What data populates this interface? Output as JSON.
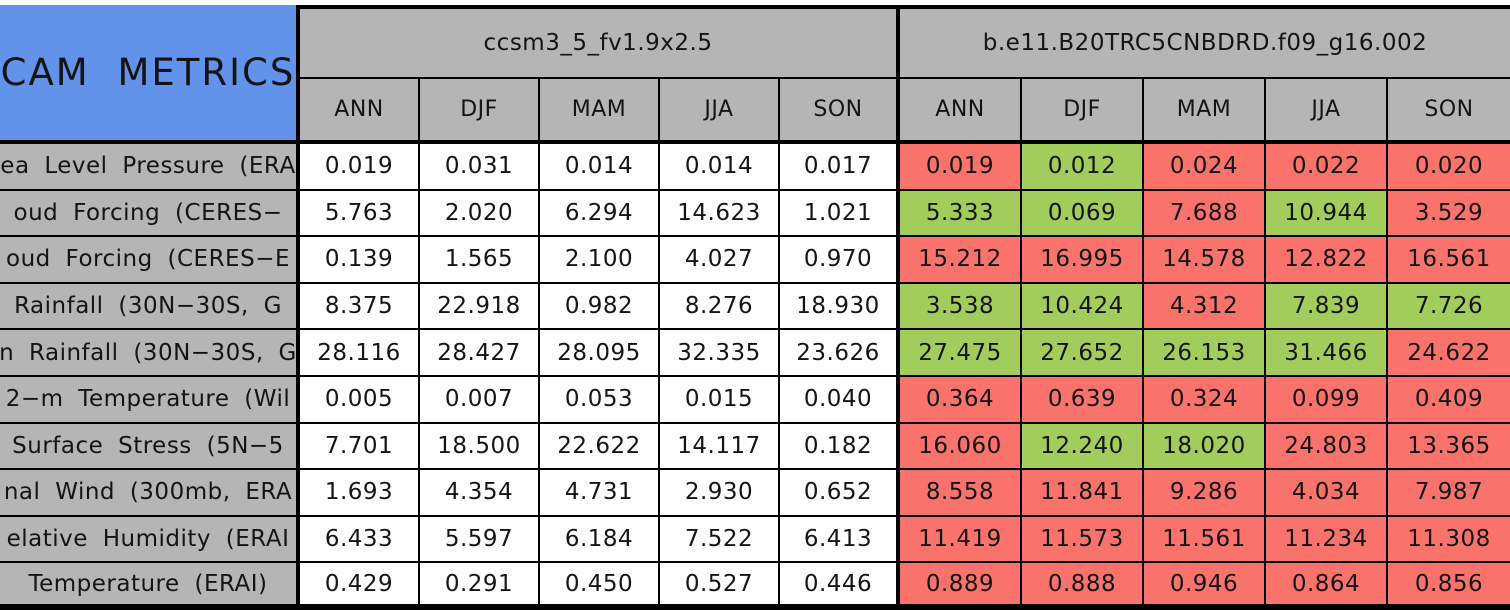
{
  "chart_data": {
    "type": "table",
    "title": "CAM METRICS",
    "models": [
      {
        "name": "ccsm3_5_fv1.9x2.5",
        "seasons": [
          "ANN",
          "DJF",
          "MAM",
          "JJA",
          "SON"
        ]
      },
      {
        "name": "b.e11.B20TRC5CNBDRD.f09_g16.002",
        "seasons": [
          "ANN",
          "DJF",
          "MAM",
          "JJA",
          "SON"
        ]
      }
    ],
    "rows": [
      {
        "label": "ea Level Pressure (ERA",
        "model1_values": [
          "0.019",
          "0.031",
          "0.014",
          "0.014",
          "0.017"
        ],
        "model2_values": [
          "0.019",
          "0.012",
          "0.024",
          "0.022",
          "0.020"
        ],
        "model2_status": [
          "red",
          "green",
          "red",
          "red",
          "red"
        ]
      },
      {
        "label": "oud Forcing (CERES−",
        "model1_values": [
          "5.763",
          "2.020",
          "6.294",
          "14.623",
          "1.021"
        ],
        "model2_values": [
          "5.333",
          "0.069",
          "7.688",
          "10.944",
          "3.529"
        ],
        "model2_status": [
          "green",
          "green",
          "red",
          "green",
          "red"
        ]
      },
      {
        "label": "oud Forcing (CERES−E",
        "model1_values": [
          "0.139",
          "1.565",
          "2.100",
          "4.027",
          "0.970"
        ],
        "model2_values": [
          "15.212",
          "16.995",
          "14.578",
          "12.822",
          "16.561"
        ],
        "model2_status": [
          "red",
          "red",
          "red",
          "red",
          "red"
        ]
      },
      {
        "label": "Rainfall (30N−30S, G",
        "model1_values": [
          "8.375",
          "22.918",
          "0.982",
          "8.276",
          "18.930"
        ],
        "model2_values": [
          "3.538",
          "10.424",
          "4.312",
          "7.839",
          "7.726"
        ],
        "model2_status": [
          "green",
          "green",
          "red",
          "green",
          "green"
        ]
      },
      {
        "label": "n Rainfall (30N−30S, G",
        "model1_values": [
          "28.116",
          "28.427",
          "28.095",
          "32.335",
          "23.626"
        ],
        "model2_values": [
          "27.475",
          "27.652",
          "26.153",
          "31.466",
          "24.622"
        ],
        "model2_status": [
          "green",
          "green",
          "green",
          "green",
          "red"
        ]
      },
      {
        "label": "2−m Temperature (Wil",
        "model1_values": [
          "0.005",
          "0.007",
          "0.053",
          "0.015",
          "0.040"
        ],
        "model2_values": [
          "0.364",
          "0.639",
          "0.324",
          "0.099",
          "0.409"
        ],
        "model2_status": [
          "red",
          "red",
          "red",
          "red",
          "red"
        ]
      },
      {
        "label": "Surface Stress (5N−5",
        "model1_values": [
          "7.701",
          "18.500",
          "22.622",
          "14.117",
          "0.182"
        ],
        "model2_values": [
          "16.060",
          "12.240",
          "18.020",
          "24.803",
          "13.365"
        ],
        "model2_status": [
          "red",
          "green",
          "green",
          "red",
          "red"
        ]
      },
      {
        "label": "nal Wind (300mb, ERA",
        "model1_values": [
          "1.693",
          "4.354",
          "4.731",
          "2.930",
          "0.652"
        ],
        "model2_values": [
          "8.558",
          "11.841",
          "9.286",
          "4.034",
          "7.987"
        ],
        "model2_status": [
          "red",
          "red",
          "red",
          "red",
          "red"
        ]
      },
      {
        "label": "elative Humidity (ERAI",
        "model1_values": [
          "6.433",
          "5.597",
          "6.184",
          "7.522",
          "6.413"
        ],
        "model2_values": [
          "11.419",
          "11.573",
          "11.561",
          "11.234",
          "11.308"
        ],
        "model2_status": [
          "red",
          "red",
          "red",
          "red",
          "red"
        ]
      },
      {
        "label": "Temperature (ERAI)",
        "model1_values": [
          "0.429",
          "0.291",
          "0.450",
          "0.527",
          "0.446"
        ],
        "model2_values": [
          "0.889",
          "0.888",
          "0.946",
          "0.864",
          "0.856"
        ],
        "model2_status": [
          "red",
          "red",
          "red",
          "red",
          "red"
        ]
      }
    ]
  },
  "colors": {
    "header_blue": "#6292E9",
    "header_gray": "#B5B5B5",
    "cell_red": "#F9736C",
    "cell_green": "#A2CD5D",
    "cell_white": "#FFFFFF",
    "border_black": "#000000"
  }
}
